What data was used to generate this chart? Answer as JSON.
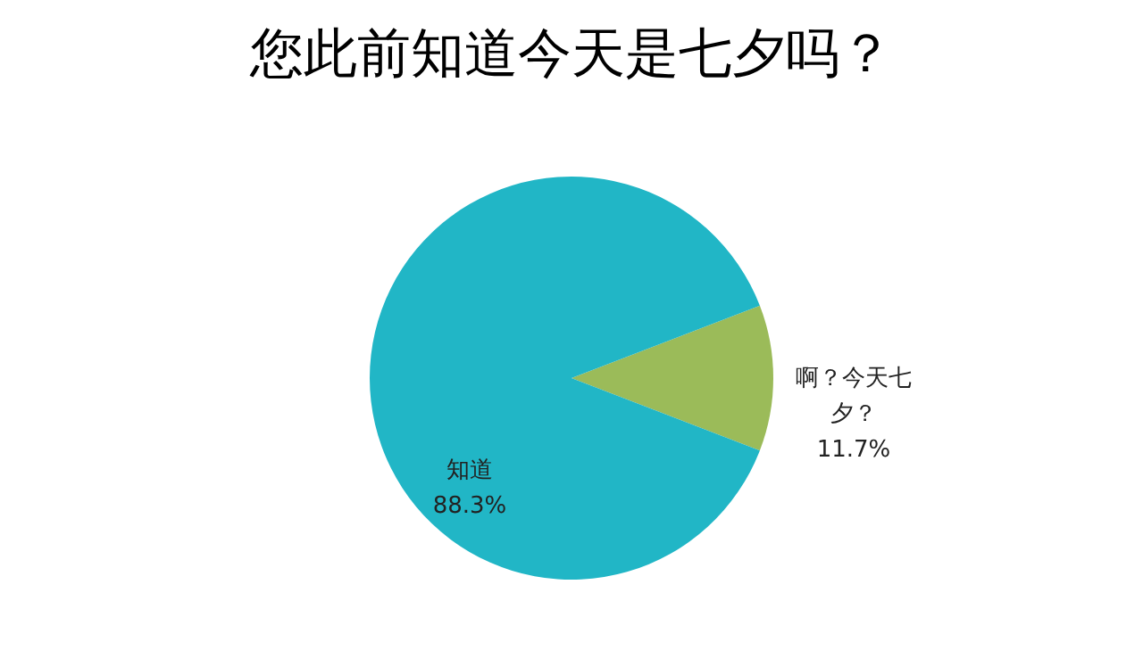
{
  "chart_data": {
    "type": "pie",
    "title": "您此前知道今天是七夕吗？",
    "categories": [
      "啊？今天七夕？",
      "知道"
    ],
    "values": [
      11.7,
      88.3
    ],
    "colors": [
      "#9bbb59",
      "#21b6c6"
    ],
    "value_labels": [
      "11.7%",
      "88.3%"
    ],
    "legend": false
  }
}
